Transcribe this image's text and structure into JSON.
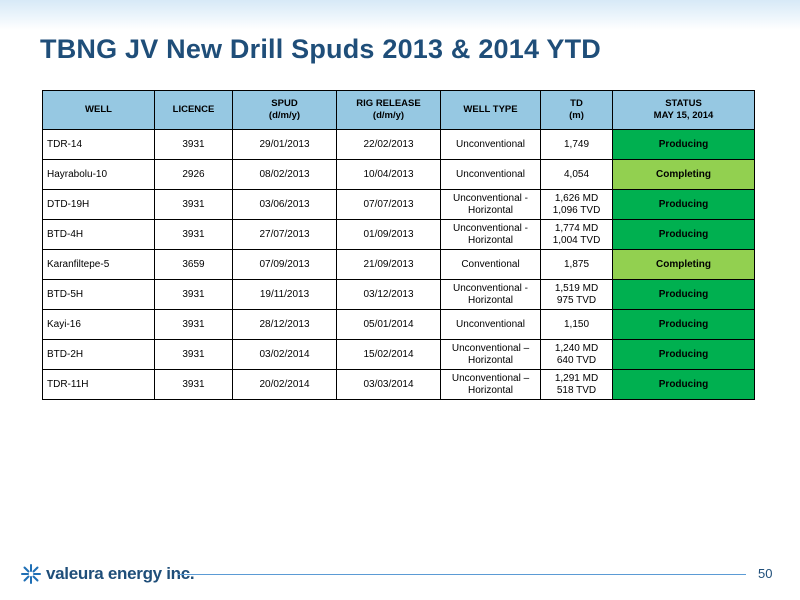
{
  "title": "TBNG JV New Drill Spuds 2013 & 2014 YTD",
  "table": {
    "headers": {
      "well": "WELL",
      "licence": "LICENCE",
      "spud": [
        "SPUD",
        "(d/m/y)"
      ],
      "rig_release": [
        "RIG RELEASE",
        "(d/m/y)"
      ],
      "well_type": "WELL TYPE",
      "td": [
        "TD",
        "(m)"
      ],
      "status": [
        "STATUS",
        "MAY 15, 2014"
      ]
    },
    "rows": [
      {
        "well": "TDR-14",
        "licence": "3931",
        "spud": "29/01/2013",
        "rig_release": "22/02/2013",
        "type": [
          "Unconventional"
        ],
        "td": [
          "1,749"
        ],
        "status": "Producing"
      },
      {
        "well": "Hayrabolu-10",
        "licence": "2926",
        "spud": "08/02/2013",
        "rig_release": "10/04/2013",
        "type": [
          "Unconventional"
        ],
        "td": [
          "4,054"
        ],
        "status": "Completing"
      },
      {
        "well": "DTD-19H",
        "licence": "3931",
        "spud": "03/06/2013",
        "rig_release": "07/07/2013",
        "type": [
          "Unconventional -",
          "Horizontal"
        ],
        "td": [
          "1,626 MD",
          "1,096 TVD"
        ],
        "status": "Producing"
      },
      {
        "well": "BTD-4H",
        "licence": "3931",
        "spud": "27/07/2013",
        "rig_release": "01/09/2013",
        "type": [
          "Unconventional -",
          "Horizontal"
        ],
        "td": [
          "1,774 MD",
          "1,004 TVD"
        ],
        "status": "Producing"
      },
      {
        "well": "Karanfiltepe-5",
        "licence": "3659",
        "spud": "07/09/2013",
        "rig_release": "21/09/2013",
        "type": [
          "Conventional"
        ],
        "td": [
          "1,875"
        ],
        "status": "Completing"
      },
      {
        "well": "BTD-5H",
        "licence": "3931",
        "spud": "19/11/2013",
        "rig_release": "03/12/2013",
        "type": [
          "Unconventional -",
          "Horizontal"
        ],
        "td": [
          "1,519 MD",
          "975 TVD"
        ],
        "status": "Producing"
      },
      {
        "well": "Kayi-16",
        "licence": "3931",
        "spud": "28/12/2013",
        "rig_release": "05/01/2014",
        "type": [
          "Unconventional"
        ],
        "td": [
          "1,150"
        ],
        "status": "Producing"
      },
      {
        "well": "BTD-2H",
        "licence": "3931",
        "spud": "03/02/2014",
        "rig_release": "15/02/2014",
        "type": [
          "Unconventional –",
          "Horizontal"
        ],
        "td": [
          "1,240 MD",
          "640 TVD"
        ],
        "status": "Producing"
      },
      {
        "well": "TDR-11H",
        "licence": "3931",
        "spud": "20/02/2014",
        "rig_release": "03/03/2014",
        "type": [
          "Unconventional –",
          "Horizontal"
        ],
        "td": [
          "1,291 MD",
          "518 TVD"
        ],
        "status": "Producing"
      }
    ]
  },
  "colors": {
    "header_bg": "#96c8e2",
    "producing": "#00b050",
    "completing": "#92d050",
    "title": "#1f4e79"
  },
  "footer": {
    "logo_text": "valeura energy inc.",
    "logo_icon": "star-burst-icon",
    "page_number": "50"
  }
}
